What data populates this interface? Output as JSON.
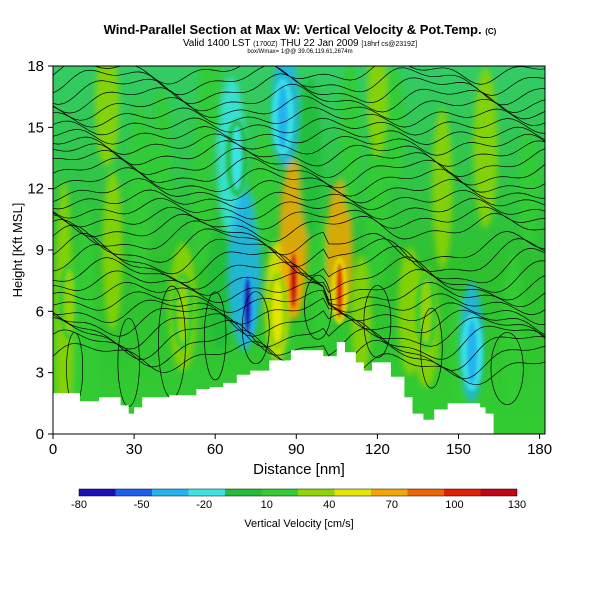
{
  "header": {
    "title": "Wind-Parallel Section at Max W: Vertical Velocity & Pot.Temp.",
    "title_tag": "(C)",
    "valid_line": "Valid 1400 LST",
    "valid_small": "(1700Z)",
    "valid_date": "THU 22 Jan 2009",
    "run_info": "[18hrf cs@2319Z]",
    "location_line": "box/Wmax= 1@@ 39.06,119.61,2674m"
  },
  "chart_data": {
    "type": "heatmap",
    "xlabel": "Distance [nm]",
    "ylabel": "Height [Kft MSL]",
    "xlim": [
      0,
      182
    ],
    "ylim": [
      0,
      18
    ],
    "xticks": [
      0,
      30,
      60,
      90,
      120,
      150,
      180
    ],
    "yticks": [
      0,
      3,
      6,
      9,
      12,
      15,
      18
    ],
    "colorbar": {
      "label": "Vertical Velocity [cm/s]",
      "ticks": [
        -80,
        -50,
        -20,
        10,
        40,
        70,
        100,
        130
      ],
      "range": [
        -80,
        130
      ],
      "colors": [
        "#1a0fb8",
        "#1f5cf2",
        "#22b4f0",
        "#3ae4e4",
        "#22bd3a",
        "#33cc33",
        "#90d400",
        "#e4e400",
        "#f5a400",
        "#f06400",
        "#e02000",
        "#c80014"
      ]
    },
    "terrain_profile": {
      "x": [
        0,
        10,
        10,
        17,
        17,
        25,
        25,
        28,
        28,
        30,
        30,
        33,
        33,
        43,
        43,
        53,
        53,
        58,
        58,
        63,
        63,
        68,
        68,
        73,
        73,
        80,
        80,
        88,
        88,
        100,
        100,
        105,
        105,
        108,
        108,
        112,
        112,
        115,
        115,
        118,
        118,
        125,
        125,
        130,
        130,
        133,
        133,
        137,
        137,
        141,
        141,
        146,
        146,
        158,
        158,
        160,
        160,
        163,
        163,
        182
      ],
      "y": [
        2.0,
        2.0,
        1.6,
        1.6,
        1.8,
        1.8,
        1.4,
        1.4,
        1.0,
        1.0,
        1.3,
        1.3,
        1.8,
        1.8,
        1.9,
        1.9,
        2.2,
        2.2,
        2.3,
        2.3,
        2.5,
        2.5,
        2.9,
        2.9,
        3.1,
        3.1,
        3.6,
        3.6,
        4.1,
        4.1,
        3.8,
        3.8,
        4.5,
        4.5,
        4.0,
        4.0,
        3.5,
        3.5,
        3.1,
        3.1,
        3.5,
        3.5,
        2.8,
        2.8,
        1.8,
        1.8,
        1.0,
        1.0,
        0.7,
        0.7,
        1.2,
        1.2,
        1.5,
        1.5,
        1.3,
        1.3,
        1.0,
        1.0,
        0.0,
        0.0
      ]
    },
    "vertical_velocity_features": [
      {
        "name": "downdraft-core",
        "x": 72,
        "y": 6.3,
        "value": -80
      },
      {
        "name": "updraft-core-1",
        "x": 89,
        "y": 7.5,
        "value": 120
      },
      {
        "name": "updraft-core-2",
        "x": 106,
        "y": 7.0,
        "value": 100
      },
      {
        "name": "updraft-core-3",
        "x": 83,
        "y": 6.0,
        "value": 50
      },
      {
        "name": "updraft-core-4",
        "x": 48,
        "y": 6.0,
        "value": 40
      },
      {
        "name": "updraft-core-5",
        "x": 138,
        "y": 6.0,
        "value": 40
      },
      {
        "name": "updraft-core-6",
        "x": 6,
        "y": 6.5,
        "value": 35
      },
      {
        "name": "downdraft-upper",
        "x": 85,
        "y": 15.5,
        "value": -30
      },
      {
        "name": "downdraft-upper-2",
        "x": 68,
        "y": 13.5,
        "value": -20
      },
      {
        "name": "downdraft-low",
        "x": 155,
        "y": 4.0,
        "value": -35
      }
    ]
  }
}
